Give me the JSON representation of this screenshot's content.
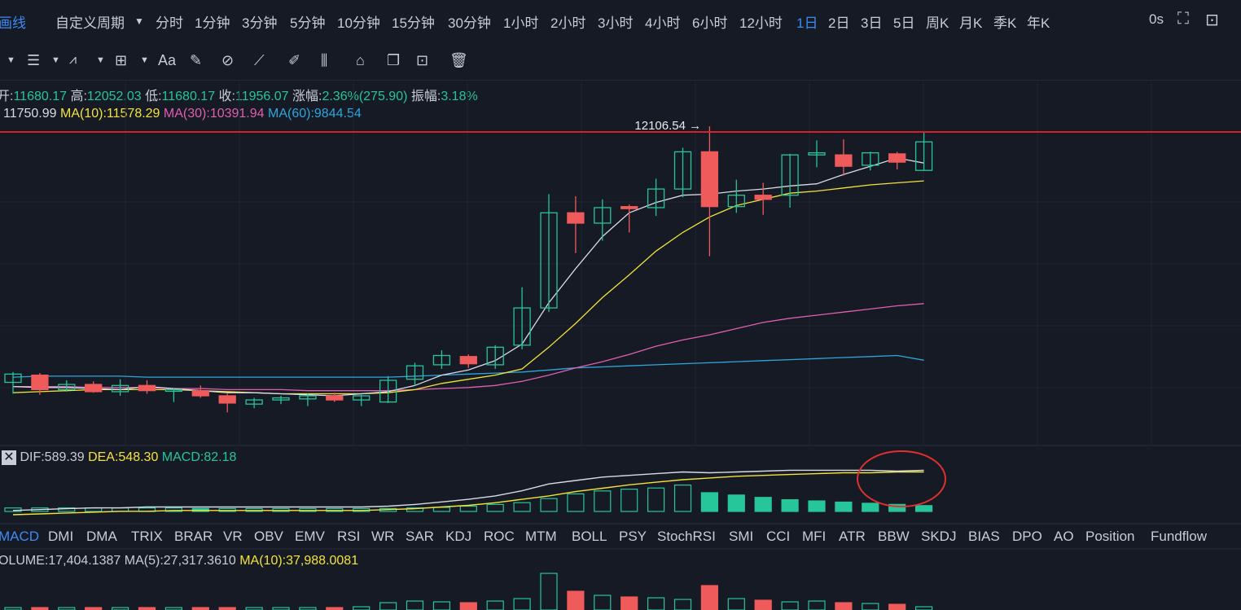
{
  "periods": {
    "left_cut": "画线",
    "custom": "自定义周期",
    "items": [
      "分时",
      "1分钟",
      "3分钟",
      "5分钟",
      "10分钟",
      "15分钟",
      "30分钟",
      "1小时",
      "2小时",
      "3小时",
      "4小时",
      "6小时",
      "12小时",
      "1日",
      "2日",
      "3日",
      "5日",
      "周K",
      "月K",
      "季K",
      "年K"
    ],
    "active": "1日",
    "countdown": "0s"
  },
  "toolbar": {
    "font_tool": "Aa"
  },
  "ohlc": {
    "open_label": "开:",
    "open": "11680.17",
    "high_label": "高:",
    "high": "12052.03",
    "low_label": "低:",
    "low": "11680.17",
    "close_label": "收:",
    "close": "11956.07",
    "change_label": "涨幅:",
    "change": "2.36%(275.90)",
    "amp_label": "振幅:",
    "amp": "3.18%"
  },
  "ma_line": {
    "ma5": "11750.99",
    "ma10_label": "MA(10):",
    "ma10": "11578.29",
    "ma30_label": "MA(30):",
    "ma30": "10391.94",
    "ma60_label": "MA(60):",
    "ma60": "9844.54"
  },
  "max_annotation": "12106.54 →",
  "macd_info": {
    "dif_label": "DIF:",
    "dif": "589.39",
    "dea_label": "DEA:",
    "dea": "548.30",
    "macd_label": "MACD:",
    "macd": "82.18"
  },
  "indicators": {
    "items": [
      "MACD",
      "DMI",
      "DMA",
      "TRIX",
      "BRAR",
      "VR",
      "OBV",
      "EMV",
      "RSI",
      "WR",
      "SAR",
      "KDJ",
      "ROC",
      "MTM",
      "BOLL",
      "PSY",
      "StochRSI",
      "SMI",
      "CCI",
      "MFI",
      "ATR",
      "BBW",
      "SKDJ",
      "BIAS",
      "DPO",
      "AO",
      "Position",
      "Fundflow"
    ],
    "active": "MACD"
  },
  "volume_info": {
    "vol_label": "OLUME:",
    "vol": "17,404.1387",
    "ma5_label": "MA(5):",
    "ma5": "27,317.3610",
    "ma10_label": "MA(10):",
    "ma10": "37,988.0081"
  },
  "colors": {
    "up": "#26c59a",
    "down": "#ef5a5a",
    "bg": "#161a25",
    "accent": "#3d8bf2",
    "price_line": "#d6202a"
  },
  "chart_data": {
    "type": "candlestick",
    "price_line": 12052.03,
    "candles": [
      {
        "o": 9630,
        "h": 9730,
        "l": 9520,
        "c": 9710
      },
      {
        "o": 9700,
        "h": 9720,
        "l": 9510,
        "c": 9560
      },
      {
        "o": 9560,
        "h": 9650,
        "l": 9540,
        "c": 9610
      },
      {
        "o": 9610,
        "h": 9640,
        "l": 9530,
        "c": 9540
      },
      {
        "o": 9540,
        "h": 9660,
        "l": 9500,
        "c": 9600
      },
      {
        "o": 9600,
        "h": 9650,
        "l": 9520,
        "c": 9550
      },
      {
        "o": 9550,
        "h": 9570,
        "l": 9440,
        "c": 9560
      },
      {
        "o": 9550,
        "h": 9600,
        "l": 9480,
        "c": 9500
      },
      {
        "o": 9500,
        "h": 9520,
        "l": 9340,
        "c": 9430
      },
      {
        "o": 9420,
        "h": 9480,
        "l": 9380,
        "c": 9460
      },
      {
        "o": 9460,
        "h": 9500,
        "l": 9420,
        "c": 9480
      },
      {
        "o": 9470,
        "h": 9520,
        "l": 9400,
        "c": 9500
      },
      {
        "o": 9500,
        "h": 9530,
        "l": 9440,
        "c": 9460
      },
      {
        "o": 9460,
        "h": 9510,
        "l": 9400,
        "c": 9500
      },
      {
        "o": 9440,
        "h": 9690,
        "l": 9430,
        "c": 9650
      },
      {
        "o": 9660,
        "h": 9820,
        "l": 9600,
        "c": 9790
      },
      {
        "o": 9800,
        "h": 9940,
        "l": 9760,
        "c": 9890
      },
      {
        "o": 9880,
        "h": 9900,
        "l": 9770,
        "c": 9810
      },
      {
        "o": 9800,
        "h": 9990,
        "l": 9760,
        "c": 9970
      },
      {
        "o": 9990,
        "h": 10550,
        "l": 9950,
        "c": 10350
      },
      {
        "o": 10350,
        "h": 11450,
        "l": 10310,
        "c": 11270
      },
      {
        "o": 11270,
        "h": 11430,
        "l": 10880,
        "c": 11170
      },
      {
        "o": 11170,
        "h": 11400,
        "l": 11000,
        "c": 11320
      },
      {
        "o": 11330,
        "h": 11350,
        "l": 11080,
        "c": 11310
      },
      {
        "o": 11320,
        "h": 11600,
        "l": 11240,
        "c": 11500
      },
      {
        "o": 11500,
        "h": 11900,
        "l": 11420,
        "c": 11860
      },
      {
        "o": 11860,
        "h": 12106.54,
        "l": 10850,
        "c": 11330
      },
      {
        "o": 11330,
        "h": 11590,
        "l": 11270,
        "c": 11440
      },
      {
        "o": 11440,
        "h": 11560,
        "l": 11250,
        "c": 11400
      },
      {
        "o": 11440,
        "h": 11840,
        "l": 11320,
        "c": 11830
      },
      {
        "o": 11830,
        "h": 11970,
        "l": 11710,
        "c": 11850
      },
      {
        "o": 11830,
        "h": 11980,
        "l": 11630,
        "c": 11720
      },
      {
        "o": 11730,
        "h": 11860,
        "l": 11680,
        "c": 11850
      },
      {
        "o": 11840,
        "h": 11860,
        "l": 11690,
        "c": 11760
      },
      {
        "o": 11680.17,
        "h": 12052.03,
        "l": 11680.17,
        "c": 11956.07
      }
    ],
    "ma5": [
      9590,
      9580,
      9580,
      9570,
      9560,
      9590,
      9570,
      9550,
      9530,
      9530,
      9520,
      9510,
      9500,
      9520,
      9540,
      9600,
      9700,
      9750,
      9840,
      10000,
      10400,
      10730,
      11040,
      11270,
      11370,
      11440,
      11450,
      11480,
      11500,
      11530,
      11550,
      11640,
      11720,
      11800,
      11750.99
    ],
    "ma10": [
      9530,
      9540,
      9550,
      9560,
      9560,
      9560,
      9560,
      9550,
      9540,
      9530,
      9520,
      9520,
      9520,
      9520,
      9530,
      9560,
      9620,
      9660,
      9700,
      9760,
      9970,
      10200,
      10450,
      10670,
      10900,
      11080,
      11230,
      11340,
      11400,
      11460,
      11480,
      11510,
      11540,
      11560,
      11578.29
    ],
    "ma30": [
      9590,
      9590,
      9590,
      9580,
      9580,
      9580,
      9570,
      9570,
      9560,
      9560,
      9560,
      9550,
      9550,
      9550,
      9550,
      9560,
      9570,
      9580,
      9600,
      9640,
      9700,
      9770,
      9830,
      9900,
      9980,
      10040,
      10090,
      10150,
      10210,
      10250,
      10280,
      10310,
      10340,
      10370,
      10391.94
    ],
    "ma60": [
      9680,
      9690,
      9690,
      9690,
      9690,
      9680,
      9680,
      9680,
      9680,
      9680,
      9680,
      9680,
      9680,
      9680,
      9680,
      9690,
      9700,
      9710,
      9720,
      9730,
      9750,
      9770,
      9780,
      9790,
      9800,
      9810,
      9820,
      9830,
      9840,
      9850,
      9860,
      9870,
      9880,
      9890,
      9844.54
    ],
    "macd_hist": [
      6,
      6,
      6,
      6,
      6,
      6,
      6,
      5,
      5,
      5,
      5,
      5,
      5,
      5,
      5,
      6,
      7,
      9,
      12,
      15,
      22,
      30,
      35,
      38,
      40,
      45,
      32,
      28,
      24,
      20,
      18,
      16,
      14,
      12,
      10
    ],
    "dif": [
      5,
      6,
      7,
      8,
      8,
      9,
      9,
      9,
      9,
      9,
      9,
      9,
      9,
      9,
      10,
      12,
      15,
      18,
      22,
      28,
      36,
      40,
      44,
      46,
      48,
      50,
      49,
      50,
      51,
      52,
      52,
      52,
      52,
      51,
      52
    ],
    "dea": [
      0,
      1,
      2,
      3,
      4,
      4,
      5,
      5,
      5,
      5,
      5,
      5,
      5,
      5,
      6,
      7,
      9,
      11,
      14,
      18,
      22,
      27,
      31,
      35,
      38,
      41,
      43,
      45,
      46,
      47,
      48,
      49,
      49,
      50,
      50
    ],
    "volume": [
      3,
      3,
      3,
      3,
      3,
      3,
      3,
      3,
      3,
      3,
      3,
      3,
      3,
      4,
      9,
      11,
      10,
      9,
      11,
      14,
      45,
      23,
      18,
      16,
      15,
      13,
      30,
      14,
      12,
      10,
      11,
      9,
      8,
      7,
      4
    ]
  }
}
